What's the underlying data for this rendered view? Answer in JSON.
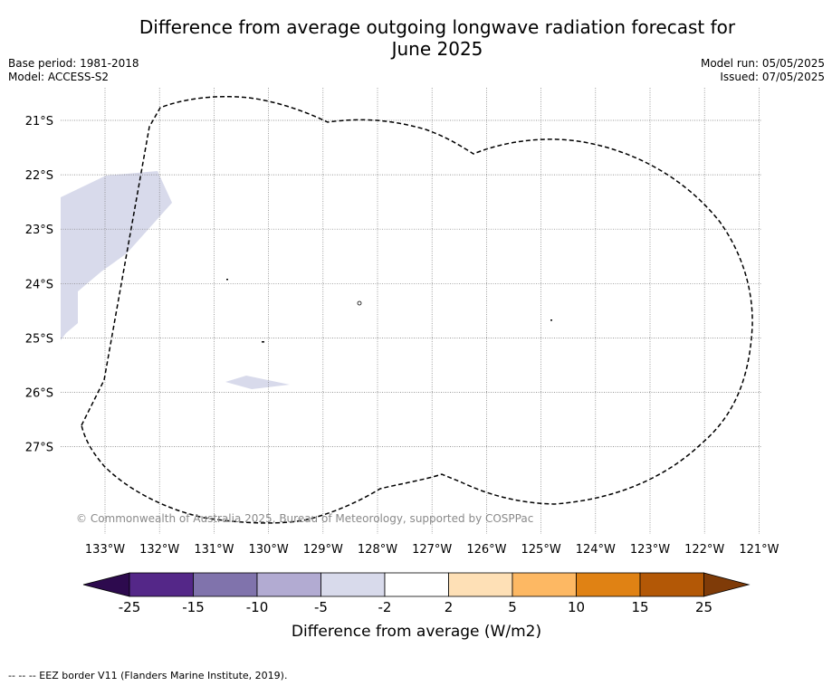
{
  "title_line1": "Difference from average outgoing longwave radiation forecast for",
  "title_line2": "June 2025",
  "base_period": "Base period: 1981-2018",
  "model": "Model: ACCESS-S2",
  "model_run": "Model run: 05/05/2025",
  "issued": "Issued: 07/05/2025",
  "copyright": "© Commonwealth of Australia 2025, Bureau of Meteorology, supported by COSPPac",
  "footer": "--  --  -- EEZ border V11 (Flanders Marine Institute, 2019).",
  "map": {
    "lon_labels": [
      "133°W",
      "132°W",
      "131°W",
      "130°W",
      "129°W",
      "128°W",
      "127°W",
      "126°W",
      "125°W",
      "124°W",
      "123°W",
      "122°W",
      "121°W"
    ],
    "lat_labels": [
      "21°S",
      "22°S",
      "23°S",
      "24°S",
      "25°S",
      "26°S",
      "27°S"
    ],
    "lon_range": [
      -133.8,
      -120.9
    ],
    "lat_range": [
      -28.4,
      -20.4
    ]
  },
  "colorbar": {
    "title": "Difference from average (W/m2)",
    "ticks": [
      "-25",
      "-15",
      "-10",
      "-5",
      "-2",
      "2",
      "5",
      "10",
      "15",
      "25"
    ],
    "colors": [
      "#2d0a4e",
      "#542788",
      "#8073ac",
      "#b2abd2",
      "#d8daeb",
      "#ffffff",
      "#fee0b6",
      "#fdb863",
      "#e08214",
      "#b35806",
      "#7f3b08"
    ]
  }
}
